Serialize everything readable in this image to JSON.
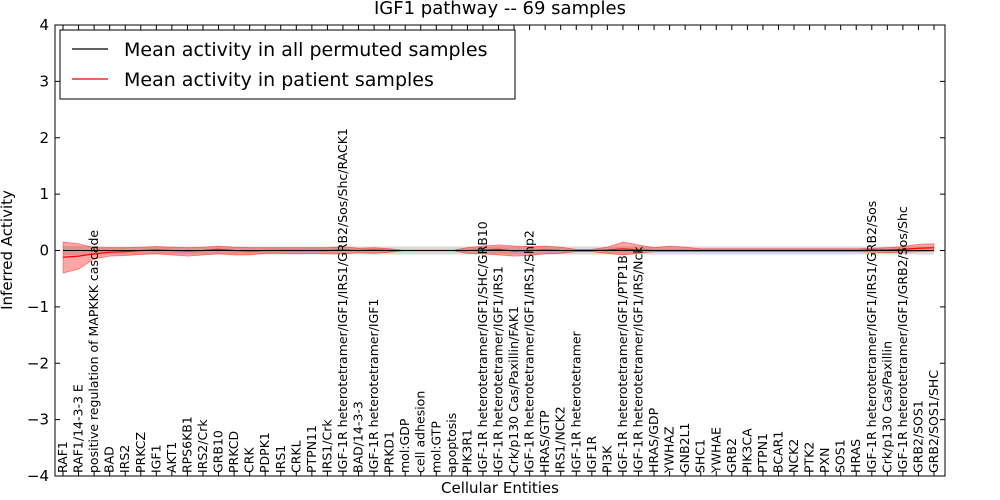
{
  "chart_data": {
    "type": "line",
    "title": "IGF1 pathway -- 69 samples",
    "xlabel": "Cellular Entities",
    "ylabel": "Inferred Activity",
    "ylim": [
      -4,
      4
    ],
    "yticks": [
      -4,
      -3,
      -2,
      -1,
      0,
      1,
      2,
      3,
      4
    ],
    "ytick_labels": [
      "−4",
      "−3",
      "−2",
      "−1",
      "0",
      "1",
      "2",
      "3",
      "4"
    ],
    "legend": {
      "placement": "top-left",
      "entries": [
        {
          "label": "Mean activity in all permuted samples",
          "color": "#000000"
        },
        {
          "label": "Mean activity in patient samples",
          "color": "#ff0000"
        }
      ]
    },
    "categories": [
      "RAF1",
      "RAF1/14-3-3 E",
      "positive regulation of MAPKKK cascade",
      "BAD",
      "IRS2",
      "PRKCZ",
      "IGF1",
      "AKT1",
      "RPS6KB1",
      "IRS2/Crk",
      "GRB10",
      "PRKCD",
      "CRK",
      "PDPK1",
      "IRS1",
      "CRKL",
      "PTPN11",
      "IRS1/Crk",
      "IGF-1R heterotetramer/IGF1/IRS1/GRB2/Sos/Shc/RACK1",
      "BAD/14-3-3",
      "IGF-1R heterotetramer/IGF1",
      "PRKD1",
      "mol:GDP",
      "cell adhesion",
      "mol:GTP",
      "apoptosis",
      "PIK3R1",
      "IGF-1R heterotetramer/IGF1/SHC/GRB10",
      "IGF-1R heterotetramer/IGF1/IRS1",
      "Crk/p130 Cas/Paxillin/FAK1",
      "IGF-1R heterotetramer/IGF1/IRS1/Shp2",
      "HRAS/GTP",
      "IRS1/NCK2",
      "IGF-1R heterotetramer",
      "IGF1R",
      "PI3K",
      "IGF-1R heterotetramer/IGF1/PTP1B",
      "IGF-1R heterotetramer/IGF1/IRS/Nck",
      "HRAS/GDP",
      "YWHAZ",
      "GNB2L1",
      "SHC1",
      "YWHAE",
      "GRB2",
      "PIK3CA",
      "PTPN1",
      "BCAR1",
      "NCK2",
      "PTK2",
      "PXN",
      "SOS1",
      "HRAS",
      "IGF-1R heterotetramer/IGF1/IRS1/GRB2/Sos",
      "Crk/p130 Cas/Paxillin",
      "IGF-1R heterotetramer/IGF1/GRB2/Sos/Shc",
      "GRB2/SOS1",
      "GRB2/SOS1/SHC"
    ],
    "series": [
      {
        "name": "Mean activity in patient samples",
        "color": "#ff0000",
        "values": [
          -0.12,
          -0.1,
          -0.06,
          -0.03,
          -0.02,
          0.0,
          0.01,
          0.0,
          -0.01,
          0.0,
          0.02,
          0.0,
          -0.01,
          0.0,
          0.0,
          0.0,
          0.0,
          0.0,
          0.01,
          0.0,
          0.01,
          0.0,
          0.0,
          0.0,
          0.0,
          0.0,
          0.0,
          0.01,
          0.02,
          -0.01,
          0.0,
          0.01,
          0.0,
          0.0,
          0.0,
          0.01,
          0.03,
          0.01,
          0.0,
          0.0,
          0.0,
          0.0,
          0.0,
          0.0,
          0.0,
          0.0,
          0.0,
          0.0,
          0.0,
          0.0,
          0.0,
          0.0,
          0.01,
          0.01,
          0.02,
          0.04,
          0.05
        ],
        "lower": [
          -0.4,
          -0.33,
          -0.15,
          -0.1,
          -0.09,
          -0.07,
          -0.06,
          -0.08,
          -0.1,
          -0.08,
          -0.06,
          -0.08,
          -0.08,
          -0.05,
          -0.05,
          -0.06,
          -0.05,
          -0.06,
          -0.06,
          -0.04,
          -0.05,
          -0.03,
          0.0,
          0.0,
          0.0,
          0.0,
          -0.05,
          -0.06,
          -0.08,
          -0.1,
          -0.09,
          -0.06,
          -0.05,
          -0.02,
          -0.02,
          -0.05,
          -0.08,
          -0.05,
          -0.02,
          -0.02,
          -0.02,
          -0.02,
          -0.02,
          -0.02,
          -0.02,
          -0.02,
          -0.02,
          -0.02,
          -0.02,
          -0.02,
          -0.02,
          -0.02,
          -0.03,
          -0.04,
          -0.03,
          -0.02,
          -0.01
        ],
        "upper": [
          0.15,
          0.12,
          0.05,
          0.05,
          0.05,
          0.06,
          0.07,
          0.06,
          0.05,
          0.06,
          0.08,
          0.06,
          0.05,
          0.05,
          0.05,
          0.05,
          0.05,
          0.05,
          0.07,
          0.04,
          0.05,
          0.03,
          0.0,
          0.0,
          0.0,
          0.0,
          0.05,
          0.08,
          0.1,
          0.08,
          0.07,
          0.08,
          0.06,
          0.02,
          0.02,
          0.06,
          0.15,
          0.1,
          0.05,
          0.08,
          0.06,
          0.03,
          0.03,
          0.03,
          0.03,
          0.03,
          0.03,
          0.03,
          0.03,
          0.03,
          0.03,
          0.03,
          0.04,
          0.05,
          0.07,
          0.11,
          0.12
        ]
      },
      {
        "name": "Mean activity in all permuted samples",
        "color": "#000000",
        "values": [
          0.0,
          0.0,
          0.0,
          0.0,
          0.0,
          0.0,
          0.0,
          0.0,
          0.0,
          0.0,
          0.0,
          0.0,
          0.0,
          0.0,
          0.0,
          0.0,
          0.0,
          0.0,
          0.0,
          0.0,
          0.0,
          0.0,
          0.0,
          0.0,
          0.0,
          0.0,
          0.0,
          0.0,
          0.0,
          0.0,
          0.0,
          0.0,
          0.0,
          0.0,
          0.0,
          0.0,
          0.0,
          0.0,
          0.0,
          0.0,
          0.0,
          0.0,
          0.0,
          0.0,
          0.0,
          0.0,
          0.0,
          0.0,
          0.0,
          0.0,
          0.0,
          0.0,
          0.0,
          0.0,
          0.0,
          0.0,
          0.0
        ],
        "lower": [
          -0.08,
          -0.08,
          -0.08,
          -0.07,
          -0.07,
          -0.07,
          -0.07,
          -0.07,
          -0.07,
          -0.07,
          -0.07,
          -0.07,
          -0.07,
          -0.07,
          -0.07,
          -0.07,
          -0.07,
          -0.07,
          -0.07,
          -0.07,
          -0.07,
          -0.07,
          -0.07,
          -0.07,
          -0.07,
          -0.07,
          -0.07,
          -0.07,
          -0.07,
          -0.07,
          -0.07,
          -0.07,
          -0.07,
          -0.07,
          -0.07,
          -0.07,
          -0.07,
          -0.07,
          -0.07,
          -0.07,
          -0.07,
          -0.07,
          -0.07,
          -0.07,
          -0.07,
          -0.07,
          -0.07,
          -0.07,
          -0.07,
          -0.07,
          -0.07,
          -0.07,
          -0.07,
          -0.07,
          -0.07,
          -0.07,
          -0.07
        ],
        "upper": [
          0.08,
          0.08,
          0.08,
          0.07,
          0.07,
          0.07,
          0.07,
          0.07,
          0.07,
          0.07,
          0.07,
          0.07,
          0.07,
          0.07,
          0.07,
          0.07,
          0.07,
          0.07,
          0.07,
          0.07,
          0.07,
          0.07,
          0.07,
          0.07,
          0.07,
          0.07,
          0.07,
          0.07,
          0.07,
          0.07,
          0.07,
          0.07,
          0.07,
          0.07,
          0.07,
          0.07,
          0.07,
          0.07,
          0.07,
          0.07,
          0.07,
          0.07,
          0.07,
          0.07,
          0.07,
          0.07,
          0.07,
          0.07,
          0.07,
          0.07,
          0.07,
          0.07,
          0.07,
          0.07,
          0.07,
          0.07,
          0.07
        ]
      }
    ]
  }
}
